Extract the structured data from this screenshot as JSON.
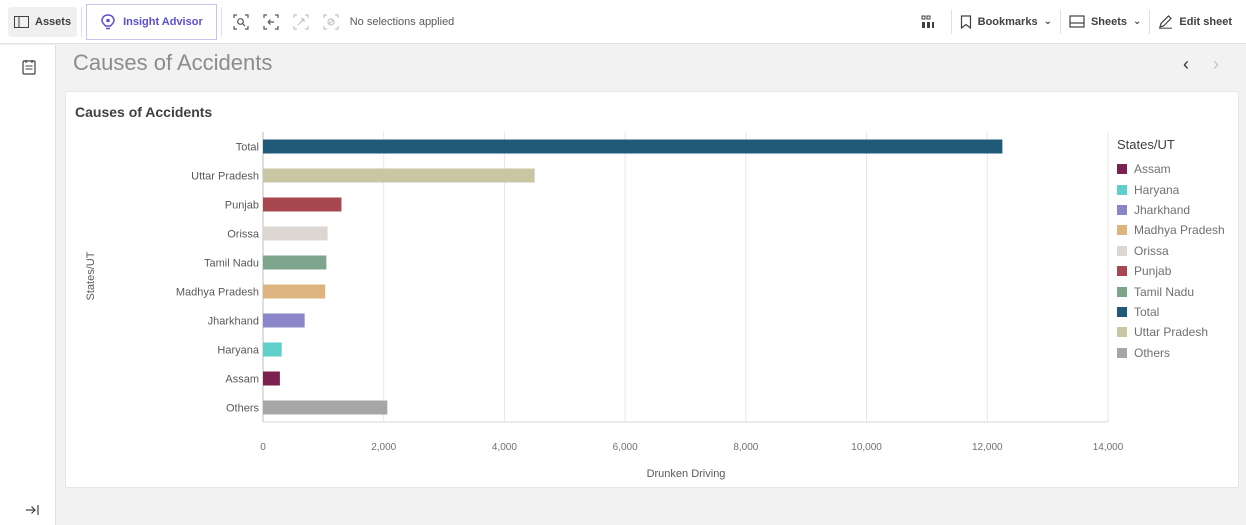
{
  "toolbar": {
    "assets_label": "Assets",
    "insight_label": "Insight Advisor",
    "no_selections": "No selections applied",
    "bookmarks_label": "Bookmarks",
    "sheets_label": "Sheets",
    "edit_label": "Edit sheet",
    "accent_color": "#5a4fcf"
  },
  "sheet": {
    "title": "Causes of Accidents"
  },
  "chart_data": {
    "type": "bar",
    "orientation": "horizontal",
    "title": "Causes of Accidents",
    "xlabel": "Drunken Driving",
    "ylabel": "States/UT",
    "xlim": [
      0,
      14000
    ],
    "x_ticks": [
      0,
      2000,
      4000,
      6000,
      8000,
      10000,
      12000,
      14000
    ],
    "x_tick_labels": [
      "0",
      "2,000",
      "4,000",
      "6,000",
      "8,000",
      "10,000",
      "12,000",
      "14,000"
    ],
    "grid": true,
    "categories": [
      "Total",
      "Uttar Pradesh",
      "Punjab",
      "Orissa",
      "Tamil Nadu",
      "Madhya Pradesh",
      "Jharkhand",
      "Haryana",
      "Assam",
      "Others"
    ],
    "values": [
      12250,
      4500,
      1300,
      1070,
      1050,
      1030,
      690,
      310,
      280,
      2060
    ],
    "colors": [
      "#1f5b78",
      "#c9c6a4",
      "#a8474f",
      "#dcd7d3",
      "#7da58c",
      "#ddb47d",
      "#8b86c7",
      "#5fcfcc",
      "#7a2150",
      "#a6a6a6"
    ],
    "legend": {
      "title": "States/UT",
      "position": "right",
      "items": [
        {
          "name": "Assam",
          "color": "#7a2150"
        },
        {
          "name": "Haryana",
          "color": "#5fcfcc"
        },
        {
          "name": "Jharkhand",
          "color": "#8b86c7"
        },
        {
          "name": "Madhya Pradesh",
          "color": "#ddb47d"
        },
        {
          "name": "Orissa",
          "color": "#dcd7d3"
        },
        {
          "name": "Punjab",
          "color": "#a8474f"
        },
        {
          "name": "Tamil Nadu",
          "color": "#7da58c"
        },
        {
          "name": "Total",
          "color": "#1f5b78"
        },
        {
          "name": "Uttar Pradesh",
          "color": "#c9c6a4"
        },
        {
          "name": "Others",
          "color": "#a6a6a6"
        }
      ]
    }
  }
}
